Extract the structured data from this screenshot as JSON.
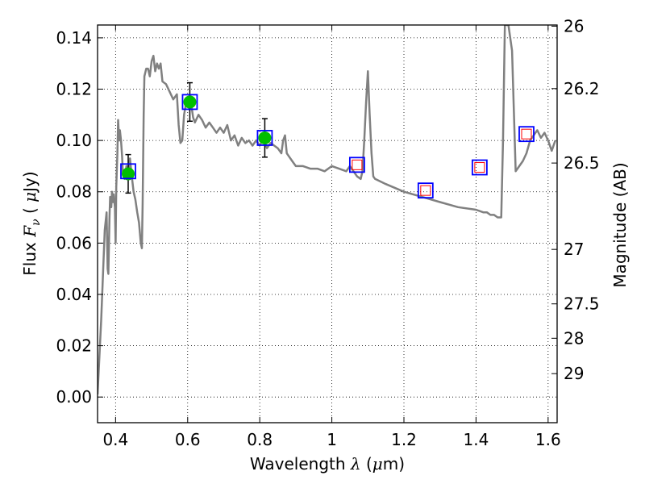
{
  "chart_data": {
    "type": "line",
    "xlabel": {
      "text": "Wavelength",
      "symbol": "λ",
      "unit_open": "(",
      "unit": "μ",
      "unit_rest": "m)"
    },
    "ylabel": {
      "text": "Flux",
      "symbol": "F",
      "subscript": "ν",
      "unit_open": "(",
      "unit": "μ",
      "unit_rest": "Jy)"
    },
    "y2label": "Magnitude (AB)",
    "xlim": [
      0.35,
      1.625
    ],
    "ylim": [
      -0.01,
      0.145
    ],
    "grid": true,
    "x_ticks": [
      {
        "value": 0.4,
        "label": "0.4"
      },
      {
        "value": 0.6,
        "label": "0.6"
      },
      {
        "value": 0.8,
        "label": "0.8"
      },
      {
        "value": 1.0,
        "label": "1"
      },
      {
        "value": 1.2,
        "label": "1.2"
      },
      {
        "value": 1.4,
        "label": "1.4"
      },
      {
        "value": 1.6,
        "label": "1.6"
      }
    ],
    "y_ticks": [
      {
        "value": 0.0,
        "label": "0.00"
      },
      {
        "value": 0.02,
        "label": "0.02"
      },
      {
        "value": 0.04,
        "label": "0.04"
      },
      {
        "value": 0.06,
        "label": "0.06"
      },
      {
        "value": 0.08,
        "label": "0.08"
      },
      {
        "value": 0.1,
        "label": "0.10"
      },
      {
        "value": 0.12,
        "label": "0.12"
      },
      {
        "value": 0.14,
        "label": "0.14"
      }
    ],
    "mag_ticks": [
      {
        "mag": 26.0,
        "label": "26"
      },
      {
        "mag": 26.2,
        "label": "26.2"
      },
      {
        "mag": 26.5,
        "label": "26.5"
      },
      {
        "mag": 27.0,
        "label": "27"
      },
      {
        "mag": 27.5,
        "label": "27.5"
      },
      {
        "mag": 28.0,
        "label": "28"
      },
      {
        "mag": 29.0,
        "label": "29"
      }
    ],
    "sed_model": {
      "color": "#808080",
      "x": [
        0.35,
        0.36,
        0.37,
        0.375,
        0.378,
        0.38,
        0.383,
        0.385,
        0.388,
        0.39,
        0.393,
        0.395,
        0.398,
        0.4,
        0.402,
        0.405,
        0.407,
        0.41,
        0.412,
        0.415,
        0.418,
        0.42,
        0.425,
        0.43,
        0.435,
        0.44,
        0.445,
        0.45,
        0.455,
        0.46,
        0.465,
        0.47,
        0.473,
        0.475,
        0.478,
        0.48,
        0.485,
        0.49,
        0.495,
        0.5,
        0.505,
        0.51,
        0.515,
        0.52,
        0.525,
        0.53,
        0.54,
        0.55,
        0.56,
        0.57,
        0.575,
        0.58,
        0.585,
        0.59,
        0.595,
        0.6,
        0.605,
        0.61,
        0.615,
        0.62,
        0.63,
        0.64,
        0.65,
        0.66,
        0.67,
        0.68,
        0.69,
        0.7,
        0.71,
        0.72,
        0.73,
        0.74,
        0.75,
        0.76,
        0.77,
        0.78,
        0.79,
        0.8,
        0.81,
        0.82,
        0.83,
        0.84,
        0.85,
        0.86,
        0.865,
        0.87,
        0.875,
        0.88,
        0.89,
        0.9,
        0.92,
        0.94,
        0.96,
        0.98,
        1.0,
        1.02,
        1.04,
        1.05,
        1.06,
        1.07,
        1.08,
        1.085,
        1.09,
        1.095,
        1.1,
        1.105,
        1.11,
        1.115,
        1.12,
        1.15,
        1.2,
        1.25,
        1.3,
        1.35,
        1.4,
        1.42,
        1.43,
        1.44,
        1.45,
        1.46,
        1.47,
        1.475,
        1.48,
        1.49,
        1.5,
        1.51,
        1.52,
        1.53,
        1.54,
        1.55,
        1.56,
        1.57,
        1.58,
        1.59,
        1.6,
        1.61,
        1.62
      ],
      "y": [
        0.001,
        0.03,
        0.065,
        0.072,
        0.05,
        0.048,
        0.07,
        0.078,
        0.074,
        0.08,
        0.076,
        0.079,
        0.074,
        0.06,
        0.082,
        0.095,
        0.108,
        0.1,
        0.104,
        0.1,
        0.094,
        0.088,
        0.085,
        0.09,
        0.087,
        0.093,
        0.086,
        0.08,
        0.077,
        0.072,
        0.068,
        0.06,
        0.058,
        0.075,
        0.11,
        0.125,
        0.128,
        0.128,
        0.125,
        0.131,
        0.133,
        0.127,
        0.13,
        0.128,
        0.13,
        0.123,
        0.122,
        0.119,
        0.116,
        0.118,
        0.106,
        0.099,
        0.1,
        0.11,
        0.114,
        0.116,
        0.112,
        0.114,
        0.109,
        0.107,
        0.11,
        0.108,
        0.105,
        0.107,
        0.105,
        0.103,
        0.105,
        0.103,
        0.106,
        0.1,
        0.102,
        0.098,
        0.101,
        0.099,
        0.1,
        0.098,
        0.1,
        0.098,
        0.101,
        0.097,
        0.099,
        0.098,
        0.097,
        0.095,
        0.1,
        0.102,
        0.095,
        0.094,
        0.092,
        0.09,
        0.09,
        0.089,
        0.089,
        0.088,
        0.09,
        0.089,
        0.088,
        0.09,
        0.088,
        0.086,
        0.085,
        0.088,
        0.1,
        0.115,
        0.127,
        0.11,
        0.095,
        0.086,
        0.085,
        0.083,
        0.08,
        0.078,
        0.076,
        0.074,
        0.073,
        0.072,
        0.072,
        0.071,
        0.071,
        0.07,
        0.07,
        0.1,
        0.145,
        0.145,
        0.135,
        0.088,
        0.09,
        0.092,
        0.095,
        0.1,
        0.102,
        0.104,
        0.101,
        0.103,
        0.1,
        0.096,
        0.1
      ]
    },
    "observed_points": {
      "color": "#00bf00",
      "points": [
        {
          "x": 0.435,
          "y": 0.087,
          "err": 0.0075
        },
        {
          "x": 0.606,
          "y": 0.115,
          "err": 0.0075
        },
        {
          "x": 0.814,
          "y": 0.101,
          "err": 0.0075
        }
      ]
    },
    "model_photometry": {
      "color": "#0000ff",
      "points": [
        {
          "x": 0.435,
          "y": 0.088
        },
        {
          "x": 0.606,
          "y": 0.115
        },
        {
          "x": 0.814,
          "y": 0.101
        },
        {
          "x": 1.07,
          "y": 0.0905
        },
        {
          "x": 1.26,
          "y": 0.0805
        },
        {
          "x": 1.41,
          "y": 0.0895
        },
        {
          "x": 1.54,
          "y": 0.1025
        }
      ]
    },
    "upper_limits": {
      "color": "#ff0000",
      "points": [
        {
          "x": 1.07,
          "y": 0.0905
        },
        {
          "x": 1.26,
          "y": 0.0805
        },
        {
          "x": 1.41,
          "y": 0.0895
        },
        {
          "x": 1.54,
          "y": 0.1025
        }
      ]
    }
  }
}
